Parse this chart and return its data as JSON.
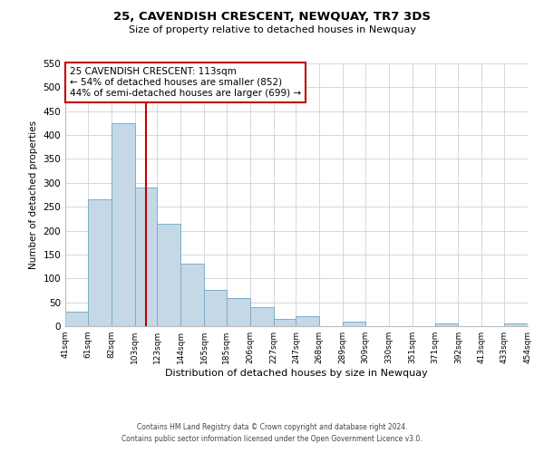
{
  "title": "25, CAVENDISH CRESCENT, NEWQUAY, TR7 3DS",
  "subtitle": "Size of property relative to detached houses in Newquay",
  "xlabel": "Distribution of detached houses by size in Newquay",
  "ylabel": "Number of detached properties",
  "footnote1": "Contains HM Land Registry data © Crown copyright and database right 2024.",
  "footnote2": "Contains public sector information licensed under the Open Government Licence v3.0.",
  "bar_edges": [
    41,
    61,
    82,
    103,
    123,
    144,
    165,
    185,
    206,
    227,
    247,
    268,
    289,
    309,
    330,
    351,
    371,
    392,
    413,
    433,
    454
  ],
  "bar_heights": [
    30,
    265,
    425,
    290,
    215,
    130,
    75,
    58,
    40,
    15,
    20,
    0,
    10,
    0,
    0,
    0,
    5,
    0,
    0,
    5
  ],
  "bar_color": "#c5d8e8",
  "bar_edgecolor": "#7aaec8",
  "property_size": 113,
  "vline_color": "#c00000",
  "annotation_line1": "25 CAVENDISH CRESCENT: 113sqm",
  "annotation_line2": "← 54% of detached houses are smaller (852)",
  "annotation_line3": "44% of semi-detached houses are larger (699) →",
  "annotation_box_facecolor": "white",
  "annotation_box_edgecolor": "#c00000",
  "ylim": [
    0,
    550
  ],
  "yticks": [
    0,
    50,
    100,
    150,
    200,
    250,
    300,
    350,
    400,
    450,
    500,
    550
  ],
  "tick_labels": [
    "41sqm",
    "61sqm",
    "82sqm",
    "103sqm",
    "123sqm",
    "144sqm",
    "165sqm",
    "185sqm",
    "206sqm",
    "227sqm",
    "247sqm",
    "268sqm",
    "289sqm",
    "309sqm",
    "330sqm",
    "351sqm",
    "371sqm",
    "392sqm",
    "413sqm",
    "433sqm",
    "454sqm"
  ],
  "background_color": "#ffffff",
  "grid_color": "#d0d8e0"
}
